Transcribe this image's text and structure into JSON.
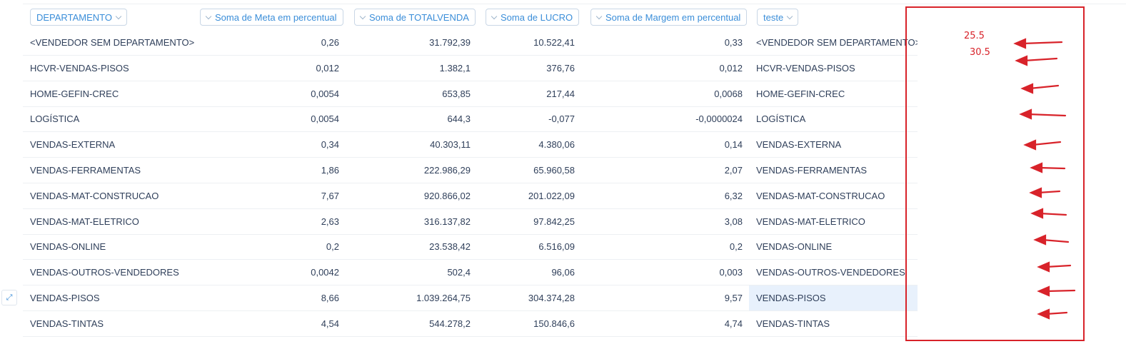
{
  "header": {
    "departamento": "DEPARTAMENTO",
    "meta": "Soma de Meta em percentual",
    "total": "Soma de TOTALVENDA",
    "lucro": "Soma de LUCRO",
    "margem": "Soma de Margem em percentual",
    "teste": "teste"
  },
  "rows": [
    {
      "dept": "<VENDEDOR SEM DEPARTAMENTO>",
      "meta": "0,26",
      "total": "31.792,39",
      "lucro": "10.522,41",
      "margem": "0,33",
      "teste": "<VENDEDOR SEM DEPARTAMENTO>"
    },
    {
      "dept": "HCVR-VENDAS-PISOS",
      "meta": "0,012",
      "total": "1.382,1",
      "lucro": "376,76",
      "margem": "0,012",
      "teste": "HCVR-VENDAS-PISOS"
    },
    {
      "dept": "HOME-GEFIN-CREC",
      "meta": "0,0054",
      "total": "653,85",
      "lucro": "217,44",
      "margem": "0,0068",
      "teste": "HOME-GEFIN-CREC"
    },
    {
      "dept": "LOGÍSTICA",
      "meta": "0,0054",
      "total": "644,3",
      "lucro": "-0,077",
      "margem": "-0,0000024",
      "teste": "LOGÍSTICA"
    },
    {
      "dept": "VENDAS-EXTERNA",
      "meta": "0,34",
      "total": "40.303,11",
      "lucro": "4.380,06",
      "margem": "0,14",
      "teste": "VENDAS-EXTERNA"
    },
    {
      "dept": "VENDAS-FERRAMENTAS",
      "meta": "1,86",
      "total": "222.986,29",
      "lucro": "65.960,58",
      "margem": "2,07",
      "teste": "VENDAS-FERRAMENTAS"
    },
    {
      "dept": "VENDAS-MAT-CONSTRUCAO",
      "meta": "7,67",
      "total": "920.866,02",
      "lucro": "201.022,09",
      "margem": "6,32",
      "teste": "VENDAS-MAT-CONSTRUCAO"
    },
    {
      "dept": "VENDAS-MAT-ELETRICO",
      "meta": "2,63",
      "total": "316.137,82",
      "lucro": "97.842,25",
      "margem": "3,08",
      "teste": "VENDAS-MAT-ELETRICO"
    },
    {
      "dept": "VENDAS-ONLINE",
      "meta": "0,2",
      "total": "23.538,42",
      "lucro": "6.516,09",
      "margem": "0,2",
      "teste": "VENDAS-ONLINE"
    },
    {
      "dept": "VENDAS-OUTROS-VENDEDORES",
      "meta": "0,0042",
      "total": "502,4",
      "lucro": "96,06",
      "margem": "0,003",
      "teste": "VENDAS-OUTROS-VENDEDORES"
    },
    {
      "dept": "VENDAS-PISOS",
      "meta": "8,66",
      "total": "1.039.264,75",
      "lucro": "304.374,28",
      "margem": "9,57",
      "teste": "VENDAS-PISOS"
    },
    {
      "dept": "VENDAS-TINTAS",
      "meta": "4,54",
      "total": "544.278,2",
      "lucro": "150.846,6",
      "margem": "4,74",
      "teste": "VENDAS-TINTAS"
    }
  ],
  "annotation": {
    "num1": "25.5",
    "num2": "30.5",
    "color": "#d8232a"
  },
  "expand_icon": "expand-diagonal-icon",
  "selected_color": "#e8f1fc",
  "accent": "#3b8ed9"
}
